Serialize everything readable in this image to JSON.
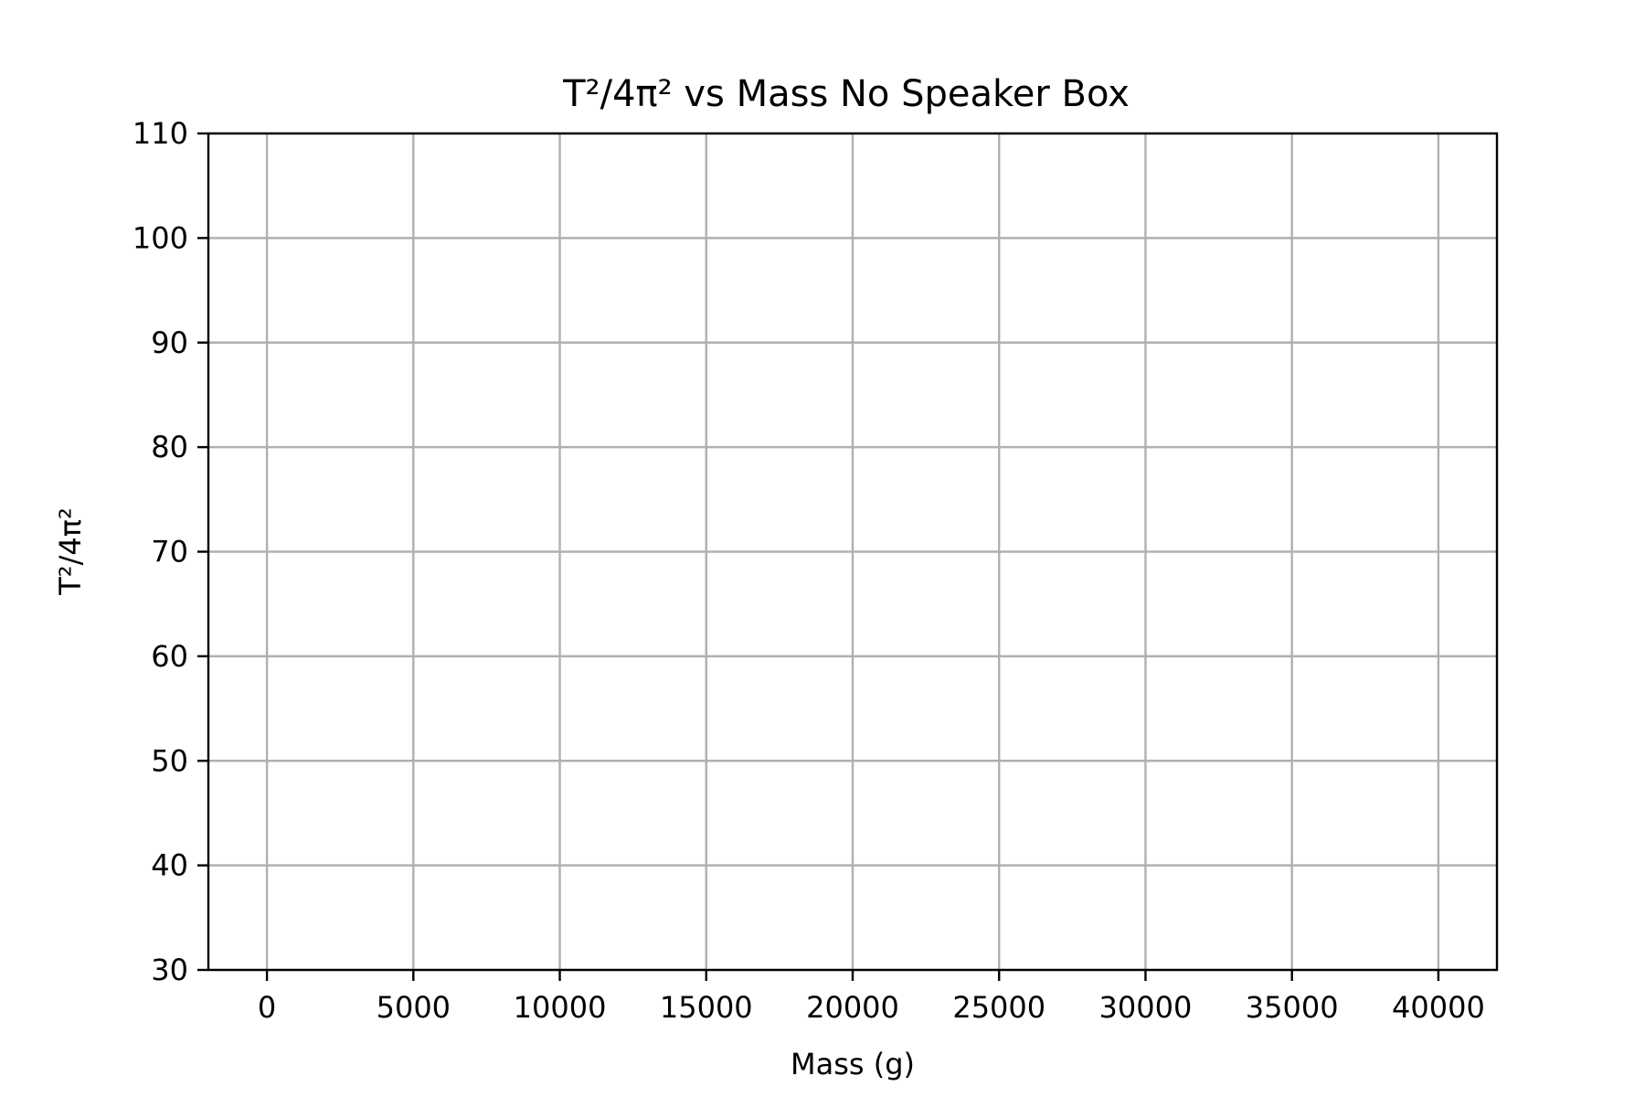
{
  "chart_data": {
    "type": "scatter",
    "title": "T²/4π² vs Mass No Speaker Box",
    "xlabel": "Mass (g)",
    "ylabel": "T²/4π²",
    "xlim": [
      -2000,
      42000
    ],
    "ylim": [
      30,
      110
    ],
    "xticks": [
      0,
      5000,
      10000,
      15000,
      20000,
      25000,
      30000,
      35000,
      40000
    ],
    "yticks": [
      30,
      40,
      50,
      60,
      70,
      80,
      90,
      100,
      110
    ],
    "grid": true,
    "series": []
  }
}
